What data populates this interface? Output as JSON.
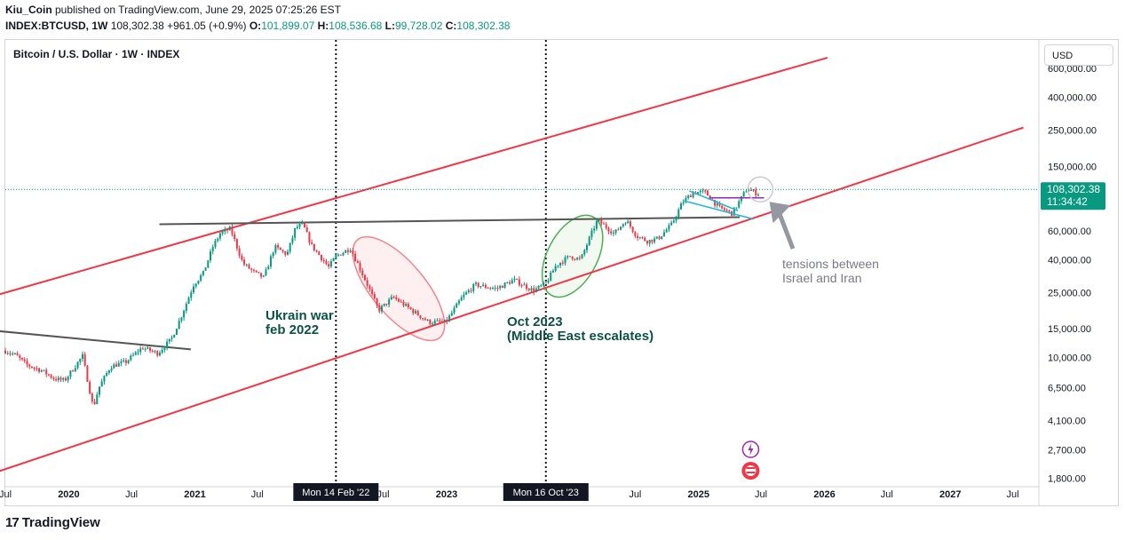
{
  "header": {
    "publisher": "Kiu_Coin",
    "published_text": " published on TradingView.com, June 29, 2025 07:25:26 EST",
    "symbol": "INDEX:BTCUSD, 1W",
    "last": "108,302.38",
    "change": "+961.05 (+0.9%)",
    "o_label": "O:",
    "o": "101,899.07",
    "h_label": "H:",
    "h": "108,536.68",
    "l_label": "L:",
    "l": "99,728.02",
    "c_label": "C:",
    "c": "108,302.38"
  },
  "chart_title": "Bitcoin / U.S. Dollar · 1W · INDEX",
  "currency_button": "USD",
  "price_tag": {
    "price": "108,302.38",
    "countdown": "11:34:42",
    "color": "#089981"
  },
  "footer": {
    "brand": "TradingView"
  },
  "chart_data": {
    "type": "candlestick",
    "title": "",
    "y_scale": "log",
    "ylim": [
      1600,
      900000
    ],
    "xlim": [
      "2019-07-01",
      "2027-09-15"
    ],
    "y_ticks": [
      "600,000.00",
      "400,000.00",
      "250,000.00",
      "150,000.00",
      "60,000.00",
      "40,000.00",
      "25,000.00",
      "15,000.00",
      "10,000.00",
      "6,500.00",
      "4,100.00",
      "2,700.00",
      "1,800.00"
    ],
    "y_tick_values": [
      600000,
      400000,
      250000,
      150000,
      60000,
      40000,
      25000,
      15000,
      10000,
      6500,
      4100,
      2700,
      1800
    ],
    "x_ticks": [
      {
        "label": "Jul",
        "date": "2019-07-01"
      },
      {
        "label": "2020",
        "date": "2020-01-01"
      },
      {
        "label": "Jul",
        "date": "2020-07-01"
      },
      {
        "label": "2021",
        "date": "2021-01-01"
      },
      {
        "label": "Jul",
        "date": "2021-07-01"
      },
      {
        "label": "Jul",
        "date": "2022-07-01"
      },
      {
        "label": "2023",
        "date": "2023-01-01"
      },
      {
        "label": "Jul",
        "date": "2024-07-01"
      },
      {
        "label": "2025",
        "date": "2025-01-01"
      },
      {
        "label": "Jul",
        "date": "2025-07-01"
      },
      {
        "label": "2026",
        "date": "2026-01-01"
      },
      {
        "label": "Jul",
        "date": "2026-07-01"
      },
      {
        "label": "2027",
        "date": "2027-01-01"
      },
      {
        "label": "Jul",
        "date": "2027-07-01"
      }
    ],
    "price_path": [
      [
        "2019-07-01",
        11000
      ],
      [
        "2019-08-01",
        10300
      ],
      [
        "2019-09-01",
        9000
      ],
      [
        "2019-10-15",
        8300
      ],
      [
        "2019-11-20",
        7400
      ],
      [
        "2019-12-20",
        7200
      ],
      [
        "2020-02-10",
        10200
      ],
      [
        "2020-03-12",
        4900
      ],
      [
        "2020-03-28",
        6500
      ],
      [
        "2020-05-01",
        8800
      ],
      [
        "2020-06-15",
        9400
      ],
      [
        "2020-08-01",
        11500
      ],
      [
        "2020-09-15",
        10600
      ],
      [
        "2020-10-25",
        13000
      ],
      [
        "2020-11-25",
        18500
      ],
      [
        "2020-12-28",
        28000
      ],
      [
        "2021-01-25",
        33000
      ],
      [
        "2021-02-22",
        48000
      ],
      [
        "2021-03-15",
        58000
      ],
      [
        "2021-04-14",
        62000
      ],
      [
        "2021-05-20",
        38000
      ],
      [
        "2021-06-25",
        33000
      ],
      [
        "2021-07-20",
        31000
      ],
      [
        "2021-08-20",
        48000
      ],
      [
        "2021-09-25",
        43000
      ],
      [
        "2021-10-20",
        63000
      ],
      [
        "2021-11-10",
        66000
      ],
      [
        "2021-12-05",
        49000
      ],
      [
        "2022-01-24",
        36000
      ],
      [
        "2022-02-14",
        42000
      ],
      [
        "2022-03-28",
        47000
      ],
      [
        "2022-05-10",
        30000
      ],
      [
        "2022-06-18",
        19500
      ],
      [
        "2022-07-30",
        23500
      ],
      [
        "2022-09-15",
        20000
      ],
      [
        "2022-11-10",
        16500
      ],
      [
        "2022-12-30",
        16500
      ],
      [
        "2023-02-15",
        23500
      ],
      [
        "2023-03-25",
        28000
      ],
      [
        "2023-05-25",
        26500
      ],
      [
        "2023-07-15",
        30000
      ],
      [
        "2023-09-10",
        25800
      ],
      [
        "2023-10-16",
        28500
      ],
      [
        "2023-11-15",
        37000
      ],
      [
        "2023-12-25",
        42000
      ],
      [
        "2024-01-25",
        40000
      ],
      [
        "2024-02-28",
        60000
      ],
      [
        "2024-03-14",
        70000
      ],
      [
        "2024-05-01",
        58000
      ],
      [
        "2024-06-05",
        70000
      ],
      [
        "2024-07-05",
        56000
      ],
      [
        "2024-08-05",
        52000
      ],
      [
        "2024-09-06",
        54000
      ],
      [
        "2024-10-15",
        66000
      ],
      [
        "2024-11-15",
        90000
      ],
      [
        "2024-12-17",
        104000
      ],
      [
        "2025-01-20",
        104000
      ],
      [
        "2025-02-28",
        84000
      ],
      [
        "2025-04-08",
        77000
      ],
      [
        "2025-05-22",
        110000
      ],
      [
        "2025-06-22",
        101000
      ],
      [
        "2025-06-29",
        108302.38
      ]
    ],
    "trendlines": [
      {
        "color": "#f23645",
        "points": [
          [
            "2019-06-15",
            24500
          ],
          [
            "2026-01-10",
            700000
          ]
        ]
      },
      {
        "color": "#f23645",
        "points": [
          [
            "2019-06-15",
            2000
          ],
          [
            "2027-08-01",
            260000
          ]
        ]
      },
      {
        "color": "#555555",
        "points": [
          [
            "2020-09-20",
            66000
          ],
          [
            "2025-04-30",
            73000
          ]
        ]
      },
      {
        "color": "#555555",
        "points": [
          [
            "2019-06-15",
            14500
          ],
          [
            "2020-12-20",
            11200
          ]
        ]
      }
    ],
    "vertical_markers": [
      {
        "date": "2022-02-14",
        "label": "Mon 14 Feb '22"
      },
      {
        "date": "2023-10-16",
        "label": "Mon 16 Oct '23"
      }
    ],
    "annotations": [
      {
        "text_lines": [
          "Ukrain war",
          "feb 2022"
        ],
        "color": "#0b5345"
      },
      {
        "text_lines": [
          "Oct 2023",
          "(Middle East escalates)"
        ],
        "color": "#0b5345"
      },
      {
        "text_lines": [
          "tensions between",
          "Israel and Iran"
        ],
        "color": "#787b86"
      }
    ]
  }
}
